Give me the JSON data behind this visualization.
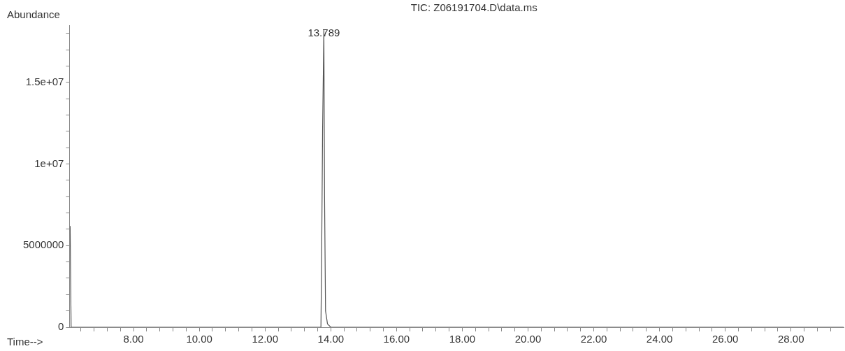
{
  "chart_data": {
    "type": "line",
    "title": "TIC: Z06191704.D\\data.ms",
    "xlabel": "Time-->",
    "ylabel": "Abundance",
    "x": [
      6.07,
      6.1,
      13.0,
      13.7,
      13.72,
      13.75,
      13.789,
      13.81,
      13.84,
      13.9,
      14.0,
      29.6
    ],
    "series": [
      {
        "color": "#555555",
        "values": [
          6200000,
          0,
          0,
          0,
          4000000,
          12000000,
          18200000,
          8000000,
          1000000,
          200000,
          0,
          0
        ]
      }
    ],
    "xlim": [
      6.05,
      29.6
    ],
    "xticks": [
      {
        "value": 6.4,
        "label": null
      },
      {
        "value": 6.8,
        "label": null
      },
      {
        "value": 7.2,
        "label": null
      },
      {
        "value": 7.6,
        "label": null
      },
      {
        "value": 8,
        "label": "8.00"
      },
      {
        "value": 8.4,
        "label": null
      },
      {
        "value": 8.8,
        "label": null
      },
      {
        "value": 9.2,
        "label": null
      },
      {
        "value": 9.6,
        "label": null
      },
      {
        "value": 10,
        "label": "10.00"
      },
      {
        "value": 10.4,
        "label": null
      },
      {
        "value": 10.8,
        "label": null
      },
      {
        "value": 11.2,
        "label": null
      },
      {
        "value": 11.6,
        "label": null
      },
      {
        "value": 12,
        "label": "12.00"
      },
      {
        "value": 12.4,
        "label": null
      },
      {
        "value": 12.8,
        "label": null
      },
      {
        "value": 13.2,
        "label": null
      },
      {
        "value": 13.6,
        "label": null
      },
      {
        "value": 14,
        "label": "14.00"
      },
      {
        "value": 14.4,
        "label": null
      },
      {
        "value": 14.8,
        "label": null
      },
      {
        "value": 15.2,
        "label": null
      },
      {
        "value": 15.6,
        "label": null
      },
      {
        "value": 16,
        "label": "16.00"
      },
      {
        "value": 16.4,
        "label": null
      },
      {
        "value": 16.8,
        "label": null
      },
      {
        "value": 17.2,
        "label": null
      },
      {
        "value": 17.6,
        "label": null
      },
      {
        "value": 18,
        "label": "18.00"
      },
      {
        "value": 18.4,
        "label": null
      },
      {
        "value": 18.8,
        "label": null
      },
      {
        "value": 19.2,
        "label": null
      },
      {
        "value": 19.6,
        "label": null
      },
      {
        "value": 20,
        "label": "20.00"
      },
      {
        "value": 20.4,
        "label": null
      },
      {
        "value": 20.8,
        "label": null
      },
      {
        "value": 21.2,
        "label": null
      },
      {
        "value": 21.6,
        "label": null
      },
      {
        "value": 22,
        "label": "22.00"
      },
      {
        "value": 22.4,
        "label": null
      },
      {
        "value": 22.8,
        "label": null
      },
      {
        "value": 23.2,
        "label": null
      },
      {
        "value": 23.6,
        "label": null
      },
      {
        "value": 24,
        "label": "24.00"
      },
      {
        "value": 24.4,
        "label": null
      },
      {
        "value": 24.8,
        "label": null
      },
      {
        "value": 25.2,
        "label": null
      },
      {
        "value": 25.6,
        "label": null
      },
      {
        "value": 26,
        "label": "26.00"
      },
      {
        "value": 26.4,
        "label": null
      },
      {
        "value": 26.8,
        "label": null
      },
      {
        "value": 27.2,
        "label": null
      },
      {
        "value": 27.6,
        "label": null
      },
      {
        "value": 28,
        "label": "28.00"
      },
      {
        "value": 28.4,
        "label": null
      },
      {
        "value": 28.8,
        "label": null
      },
      {
        "value": 29.2,
        "label": null
      }
    ],
    "ylim": [
      0,
      18500000
    ],
    "yticks": [
      0,
      {
        "value": 1000000,
        "label": null
      },
      {
        "value": 2000000,
        "label": null
      },
      {
        "value": 3000000,
        "label": null
      },
      {
        "value": 4000000,
        "label": null
      },
      5000000,
      {
        "value": 6000000,
        "label": null
      },
      {
        "value": 7000000,
        "label": null
      },
      {
        "value": 8000000,
        "label": null
      },
      {
        "value": 9000000,
        "label": null
      },
      {
        "value": 10000000,
        "label": "1e+07"
      },
      {
        "value": 11000000,
        "label": null
      },
      {
        "value": 12000000,
        "label": null
      },
      {
        "value": 13000000,
        "label": null
      },
      {
        "value": 14000000,
        "label": null
      },
      {
        "value": 15000000,
        "label": "1.5e+07"
      },
      {
        "value": 16000000,
        "label": null
      },
      {
        "value": 17000000,
        "label": null
      },
      {
        "value": 18000000,
        "label": null
      }
    ],
    "annotations": [
      {
        "text": "13.789",
        "x": 13.789,
        "y": 18200000
      }
    ],
    "grid": false,
    "legend": false,
    "marker": "none",
    "line_style": "solid"
  }
}
